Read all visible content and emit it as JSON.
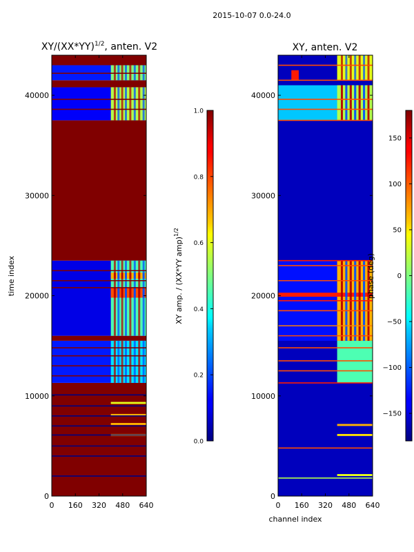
{
  "suptitle": "2015-10-07 0.0-24.0",
  "chart_data": [
    {
      "type": "heatmap",
      "title": "XY/(XX*YY)",
      "title_superscript": "1/2",
      "title_suffix": ", anten. V2",
      "xlabel": "",
      "ylabel": "time index",
      "xlim": [
        0,
        640
      ],
      "ylim": [
        0,
        44000
      ],
      "xticks": [
        0,
        160,
        320,
        480,
        640
      ],
      "yticks": [
        0,
        10000,
        20000,
        30000,
        40000
      ],
      "colorbar": {
        "label": "XY amp. / (XX*YY amp)",
        "label_superscript": "1/2",
        "range": [
          0.0,
          1.0
        ],
        "ticks": [
          "0.0",
          "0.2",
          "0.4",
          "0.6",
          "0.8",
          "1.0"
        ]
      },
      "bands": [
        {
          "from": 0,
          "to": 11300,
          "level": 1.0
        },
        {
          "from": 11300,
          "to": 15500,
          "level": 0.15
        },
        {
          "from": 15500,
          "to": 16000,
          "level": 1.0
        },
        {
          "from": 16000,
          "to": 23500,
          "level": 0.1
        },
        {
          "from": 23500,
          "to": 37500,
          "level": 1.0
        },
        {
          "from": 37500,
          "to": 40800,
          "level": 0.12
        },
        {
          "from": 40800,
          "to": 41500,
          "level": 1.0
        },
        {
          "from": 41500,
          "to": 43000,
          "level": 0.15
        },
        {
          "from": 43000,
          "to": 44000,
          "level": 1.0
        }
      ],
      "lines": [
        {
          "t": 2000,
          "level": 0.0
        },
        {
          "t": 4000,
          "level": 0.0
        },
        {
          "t": 5000,
          "level": 0.0
        },
        {
          "t": 6100,
          "level": 0.0
        },
        {
          "t": 7000,
          "level": 0.0
        },
        {
          "t": 8000,
          "level": 0.0
        },
        {
          "t": 9000,
          "level": 0.0
        },
        {
          "t": 10100,
          "level": 0.0
        },
        {
          "t": 12000,
          "level": 1.0
        },
        {
          "t": 13000,
          "level": 1.0
        },
        {
          "t": 14000,
          "level": 1.0
        },
        {
          "t": 14800,
          "level": 1.0
        },
        {
          "t": 20800,
          "level": 1.0
        },
        {
          "t": 21500,
          "level": 1.0
        },
        {
          "t": 22500,
          "level": 1.0
        },
        {
          "t": 38600,
          "level": 1.0
        },
        {
          "t": 39600,
          "level": 1.0
        },
        {
          "t": 42200,
          "level": 1.0
        },
        {
          "t": 43600,
          "level": 1.0
        }
      ],
      "patches": [
        {
          "x0": 400,
          "x1": 640,
          "t0": 16000,
          "t1": 23500,
          "level": 0.45
        },
        {
          "x0": 400,
          "x1": 640,
          "t0": 19800,
          "t1": 20800,
          "level": 0.8
        },
        {
          "x0": 400,
          "x1": 640,
          "t0": 21700,
          "t1": 22300,
          "level": 0.7
        },
        {
          "x0": 400,
          "x1": 640,
          "t0": 37500,
          "t1": 40800,
          "level": 0.55
        },
        {
          "x0": 400,
          "x1": 640,
          "t0": 41500,
          "t1": 43000,
          "level": 0.5
        },
        {
          "x0": 400,
          "x1": 640,
          "t0": 11300,
          "t1": 15500,
          "level": 0.35
        },
        {
          "x0": 400,
          "x1": 640,
          "t0": 6000,
          "t1": 6200,
          "level": 0.7
        },
        {
          "x0": 400,
          "x1": 640,
          "t0": 7100,
          "t1": 7300,
          "level": 0.7
        },
        {
          "x0": 400,
          "x1": 640,
          "t0": 8000,
          "t1": 8200,
          "level": 0.7
        },
        {
          "x0": 400,
          "x1": 640,
          "t0": 9200,
          "t1": 9400,
          "level": 0.6
        }
      ],
      "stripe_channels": [
        420,
        445,
        470,
        495,
        525,
        555,
        585,
        615
      ]
    },
    {
      "type": "heatmap",
      "title": "XY, anten. V2",
      "xlabel": "channel index",
      "ylabel": "",
      "xlim": [
        0,
        640
      ],
      "ylim": [
        0,
        44000
      ],
      "xticks": [
        0,
        160,
        320,
        480,
        640
      ],
      "yticks": [
        0,
        10000,
        20000,
        30000,
        40000
      ],
      "colorbar": {
        "label": "phase (deg)",
        "range": [
          -180,
          180
        ],
        "ticks": [
          "−150",
          "−100",
          "−50",
          "0",
          "50",
          "100",
          "150"
        ],
        "tick_values": [
          -150,
          -100,
          -50,
          0,
          50,
          100,
          150
        ]
      },
      "bands": [
        {
          "from": 0,
          "to": 44000,
          "level": 0.06
        }
      ],
      "lines": [
        {
          "t": 1800,
          "level": 0.55
        },
        {
          "t": 4800,
          "level": 0.8
        },
        {
          "t": 11300,
          "level": 0.85
        },
        {
          "t": 12500,
          "level": 0.8
        },
        {
          "t": 13500,
          "level": 0.8
        },
        {
          "t": 14800,
          "level": 0.8
        },
        {
          "t": 16000,
          "level": 0.8
        },
        {
          "t": 17000,
          "level": 0.75
        },
        {
          "t": 18500,
          "level": 0.8
        },
        {
          "t": 19500,
          "level": 0.85
        },
        {
          "t": 21500,
          "level": 0.8
        },
        {
          "t": 23000,
          "level": 0.8
        },
        {
          "t": 23500,
          "level": 0.85
        },
        {
          "t": 37500,
          "level": 0.8
        },
        {
          "t": 38600,
          "level": 0.8
        },
        {
          "t": 39600,
          "level": 0.8
        },
        {
          "t": 41500,
          "level": 0.8
        },
        {
          "t": 43000,
          "level": 0.8
        }
      ],
      "patches": [
        {
          "x0": 0,
          "x1": 640,
          "t0": 37500,
          "t1": 41000,
          "level": 0.32
        },
        {
          "x0": 0,
          "x1": 640,
          "t0": 15500,
          "t1": 23500,
          "level": 0.14
        },
        {
          "x0": 400,
          "x1": 640,
          "t0": 15500,
          "t1": 23500,
          "level": 0.7
        },
        {
          "x0": 0,
          "x1": 640,
          "t0": 19900,
          "t1": 20300,
          "level": 0.85
        },
        {
          "x0": 400,
          "x1": 640,
          "t0": 41500,
          "t1": 44000,
          "level": 0.6
        },
        {
          "x0": 400,
          "x1": 640,
          "t0": 37500,
          "t1": 41000,
          "level": 0.55
        },
        {
          "x0": 400,
          "x1": 640,
          "t0": 11300,
          "t1": 15500,
          "level": 0.45
        },
        {
          "x0": 400,
          "x1": 640,
          "t0": 7000,
          "t1": 7200,
          "level": 0.7
        },
        {
          "x0": 400,
          "x1": 640,
          "t0": 6000,
          "t1": 6200,
          "level": 0.65
        },
        {
          "x0": 400,
          "x1": 640,
          "t0": 2000,
          "t1": 2200,
          "level": 0.6
        },
        {
          "x0": 90,
          "x1": 140,
          "t0": 41500,
          "t1": 42500,
          "level": 0.85
        }
      ],
      "stripe_channels": [
        425,
        455,
        485,
        515,
        545,
        575,
        605
      ]
    }
  ]
}
